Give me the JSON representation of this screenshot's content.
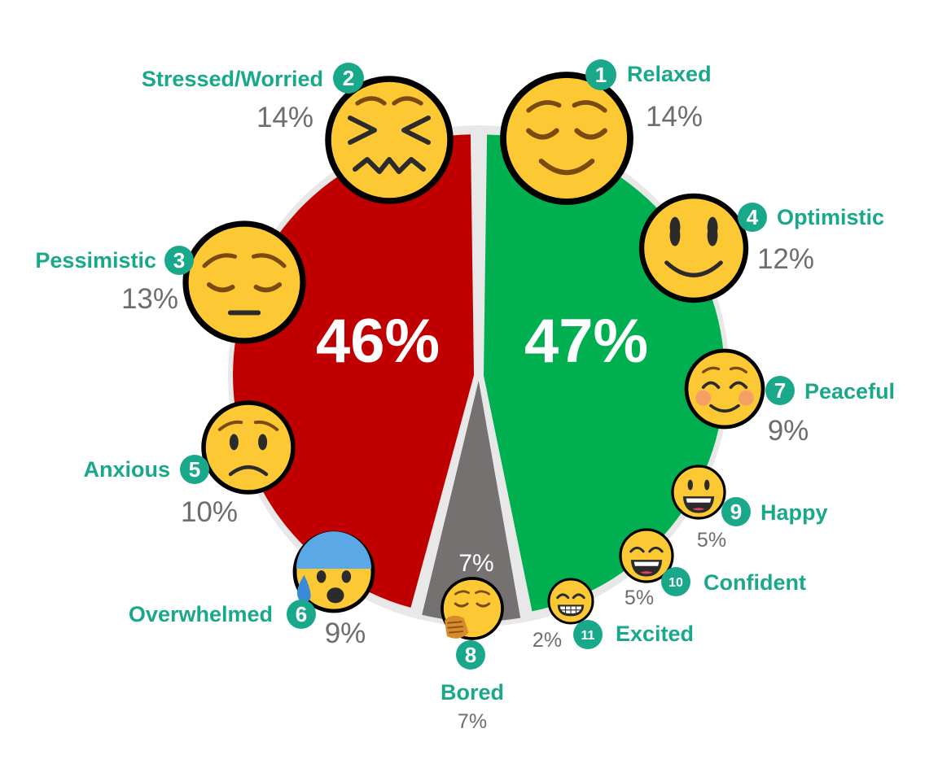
{
  "chart_data": {
    "type": "pie",
    "groups": [
      {
        "name": "",
        "value": 47,
        "label": "47%",
        "color": "#00b050"
      },
      {
        "name": "",
        "value": 46,
        "label": "46%",
        "color": "#c00000"
      },
      {
        "name": "",
        "value": 7,
        "label": "7%",
        "color": "#767171"
      }
    ],
    "items": [
      {
        "n": "1",
        "name": "Relaxed",
        "value": 14,
        "label": "14%",
        "icon": "relieved-face-icon"
      },
      {
        "n": "2",
        "name": "Stressed/Worried",
        "value": 14,
        "label": "14%",
        "icon": "confounded-face-icon"
      },
      {
        "n": "3",
        "name": "Pessimistic",
        "value": 13,
        "label": "13%",
        "icon": "pensive-face-icon"
      },
      {
        "n": "4",
        "name": "Optimistic",
        "value": 12,
        "label": "12%",
        "icon": "smiling-face-icon"
      },
      {
        "n": "5",
        "name": "Anxious",
        "value": 10,
        "label": "10%",
        "icon": "worried-face-icon"
      },
      {
        "n": "6",
        "name": "Overwhelmed",
        "value": 9,
        "label": "9%",
        "icon": "anxious-sweat-face-icon"
      },
      {
        "n": "7",
        "name": "Peaceful",
        "value": 9,
        "label": "9%",
        "icon": "blushing-face-icon"
      },
      {
        "n": "8",
        "name": "Bored",
        "value": 7,
        "label": "7%",
        "icon": "yawning-face-icon"
      },
      {
        "n": "9",
        "name": "Happy",
        "value": 5,
        "label": "5%",
        "icon": "grinning-face-icon"
      },
      {
        "n": "10",
        "name": "Confident",
        "value": 5,
        "label": "5%",
        "icon": "beaming-face-icon"
      },
      {
        "n": "11",
        "name": "Excited",
        "value": 2,
        "label": "2%",
        "icon": "grimacing-face-icon"
      }
    ],
    "colors": {
      "label": "#1aa88a",
      "badge": "#1aa88a",
      "percent": "#6d6d6d",
      "ring": "#e8e8e8",
      "emoji": "#fcc934"
    }
  }
}
